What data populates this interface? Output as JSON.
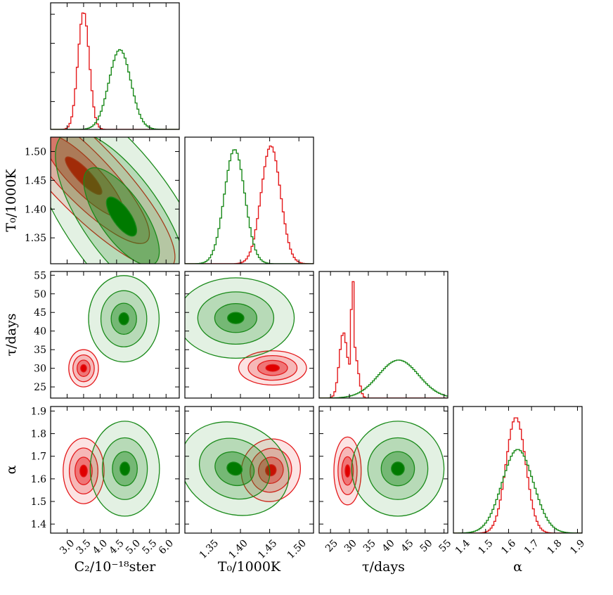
{
  "chart_data": {
    "type": "corner",
    "title": "",
    "colors": {
      "red": "#e41a1c",
      "green": "#1a8a1a",
      "red_fill": "#e41a1c",
      "green_fill": "#1a8a1a",
      "red_core": "#e00000",
      "green_core": "#007a00"
    },
    "parameters": [
      {
        "key": "C2",
        "label": "C₂/10⁻¹⁸ster",
        "range": [
          2.5,
          6.4
        ],
        "ticks": [
          3.0,
          3.5,
          4.0,
          4.5,
          5.0,
          5.5,
          6.0
        ],
        "tick_labels": [
          "3.0",
          "3.5",
          "4.0",
          "4.5",
          "5.0",
          "5.5",
          "6.0"
        ]
      },
      {
        "key": "T0",
        "label": "T₀/1000K",
        "range": [
          1.305,
          1.525
        ],
        "ticks": [
          1.35,
          1.4,
          1.45,
          1.5
        ],
        "tick_labels": [
          "1.35",
          "1.40",
          "1.45",
          "1.50"
        ]
      },
      {
        "key": "tau",
        "label": "τ/days",
        "range": [
          22,
          56
        ],
        "ticks": [
          25,
          30,
          35,
          40,
          45,
          50,
          55
        ],
        "tick_labels": [
          "25",
          "30",
          "35",
          "40",
          "45",
          "50",
          "55"
        ]
      },
      {
        "key": "alpha",
        "label": "α",
        "range": [
          1.36,
          1.92
        ],
        "ticks": [
          1.4,
          1.5,
          1.6,
          1.7,
          1.8,
          1.9
        ],
        "tick_labels": [
          "1.4",
          "1.5",
          "1.6",
          "1.7",
          "1.8",
          "1.9"
        ]
      }
    ],
    "series": [
      {
        "name": "red",
        "color_key": "red",
        "marginals": [
          {
            "shape": "gauss",
            "mean": 3.5,
            "sd": 0.17,
            "peak": 0.92
          },
          {
            "shape": "gauss",
            "mean": 1.452,
            "sd": 0.0165,
            "peak": 0.93
          },
          {
            "shape": "mix",
            "comps": [
              {
                "mean": 28.4,
                "sd": 1.05,
                "w": 0.7
              },
              {
                "mean": 30.8,
                "sd": 0.3,
                "w": 1.0
              },
              {
                "mean": 31.5,
                "sd": 0.9,
                "w": 0.45
              }
            ],
            "peak": 0.92
          },
          {
            "shape": "gauss",
            "mean": 1.632,
            "sd": 0.043,
            "peak": 0.91
          }
        ],
        "pairs": [
          {
            "x": 0,
            "y": 1,
            "cx": 3.5,
            "cy": 1.458,
            "rx": 1.05,
            "ry": 0.22,
            "angle": -44,
            "levels": [
              1.0,
              0.72,
              0.44,
              0.2
            ]
          },
          {
            "x": 0,
            "y": 2,
            "cx": 3.5,
            "cy": 30.0,
            "rx": 0.45,
            "ry": 5.0,
            "angle": 0,
            "levels": [
              1.0,
              0.72,
              0.44,
              0.2
            ]
          },
          {
            "x": 1,
            "y": 2,
            "cx": 1.455,
            "cy": 30.1,
            "rx": 0.058,
            "ry": 4.6,
            "angle": 0,
            "levels": [
              1.0,
              0.72,
              0.44,
              0.2
            ]
          },
          {
            "x": 0,
            "y": 3,
            "cx": 3.5,
            "cy": 1.635,
            "rx": 0.62,
            "ry": 0.145,
            "angle": 0,
            "levels": [
              1.0,
              0.7,
              0.42,
              0.18
            ]
          },
          {
            "x": 1,
            "y": 3,
            "cx": 1.452,
            "cy": 1.638,
            "rx": 0.05,
            "ry": 0.14,
            "angle": 22,
            "levels": [
              1.0,
              0.7,
              0.42,
              0.18
            ]
          },
          {
            "x": 2,
            "y": 3,
            "cx": 29.5,
            "cy": 1.635,
            "rx": 3.6,
            "ry": 0.15,
            "angle": 0,
            "levels": [
              1.0,
              0.7,
              0.42,
              0.18
            ]
          }
        ]
      },
      {
        "name": "green",
        "color_key": "green",
        "marginals": [
          {
            "shape": "gauss",
            "mean": 4.6,
            "sd": 0.33,
            "peak": 0.63
          },
          {
            "shape": "gauss",
            "mean": 1.39,
            "sd": 0.0175,
            "peak": 0.9
          },
          {
            "shape": "gauss",
            "mean": 43.0,
            "sd": 5.3,
            "peak": 0.3
          },
          {
            "shape": "gauss",
            "mean": 1.64,
            "sd": 0.068,
            "peak": 0.66
          }
        ],
        "pairs": [
          {
            "x": 0,
            "y": 1,
            "cx": 4.65,
            "cy": 1.387,
            "rx": 1.7,
            "ry": 0.25,
            "angle": -35,
            "levels": [
              1.0,
              0.7,
              0.4,
              0.16
            ]
          },
          {
            "x": 0,
            "y": 2,
            "cx": 4.72,
            "cy": 43.3,
            "rx": 1.07,
            "ry": 11.6,
            "angle": 0,
            "levels": [
              1.0,
              0.65,
              0.36,
              0.14
            ]
          },
          {
            "x": 1,
            "y": 2,
            "cx": 1.392,
            "cy": 43.5,
            "rx": 0.1,
            "ry": 10.8,
            "angle": 0,
            "levels": [
              1.0,
              0.65,
              0.36,
              0.14
            ]
          },
          {
            "x": 0,
            "y": 3,
            "cx": 4.75,
            "cy": 1.645,
            "rx": 1.05,
            "ry": 0.21,
            "angle": 0,
            "levels": [
              1.0,
              0.65,
              0.36,
              0.14
            ]
          },
          {
            "x": 1,
            "y": 3,
            "cx": 1.39,
            "cy": 1.645,
            "rx": 0.095,
            "ry": 0.2,
            "angle": 22,
            "levels": [
              1.0,
              0.65,
              0.36,
              0.14
            ]
          },
          {
            "x": 2,
            "y": 3,
            "cx": 42.8,
            "cy": 1.645,
            "rx": 12.2,
            "ry": 0.21,
            "angle": 0,
            "levels": [
              1.0,
              0.65,
              0.36,
              0.14
            ]
          }
        ]
      }
    ]
  }
}
